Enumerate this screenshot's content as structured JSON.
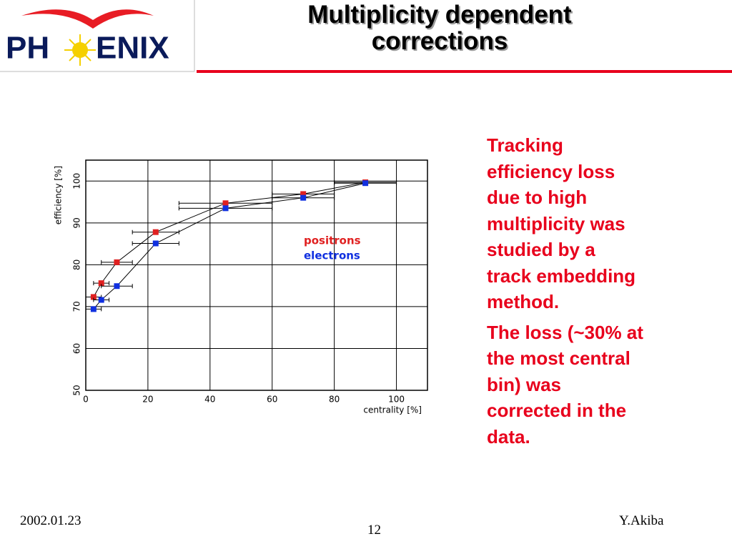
{
  "logo": {
    "left": "PH",
    "right": "ENIX"
  },
  "title": [
    "Multiplicity dependent",
    "corrections"
  ],
  "chart_data": {
    "type": "errorbar-line",
    "xlabel": "centrality [%]",
    "ylabel": "efficiency [%]",
    "x": [
      2.5,
      5,
      10,
      22.5,
      45,
      70,
      90
    ],
    "xerr": [
      2.5,
      2.5,
      5,
      7.5,
      15,
      10,
      10
    ],
    "series": [
      {
        "name": "positrons",
        "color": "#e02020",
        "values": [
          72.3,
          75.6,
          80.6,
          87.8,
          94.7,
          96.9,
          99.7
        ]
      },
      {
        "name": "electrons",
        "color": "#1030e0",
        "values": [
          69.4,
          71.6,
          74.9,
          85.1,
          93.5,
          96.0,
          99.5
        ]
      }
    ],
    "xlim": [
      0,
      110
    ],
    "ylim": [
      50,
      105
    ],
    "xticks": [
      0,
      20,
      40,
      60,
      80,
      100
    ],
    "yticks": [
      50,
      60,
      70,
      80,
      90,
      100
    ],
    "grid": true
  },
  "bullets": [
    [
      "Tracking",
      "efficiency loss",
      "due to high",
      "multiplicity was",
      "studied by a",
      "track embedding",
      "method."
    ],
    [
      "The loss (~30% at",
      "the most central",
      "bin) was",
      "corrected in the",
      "data."
    ]
  ],
  "footer": {
    "date": "2002.01.23",
    "page": "12",
    "author": "Y.Akiba"
  }
}
